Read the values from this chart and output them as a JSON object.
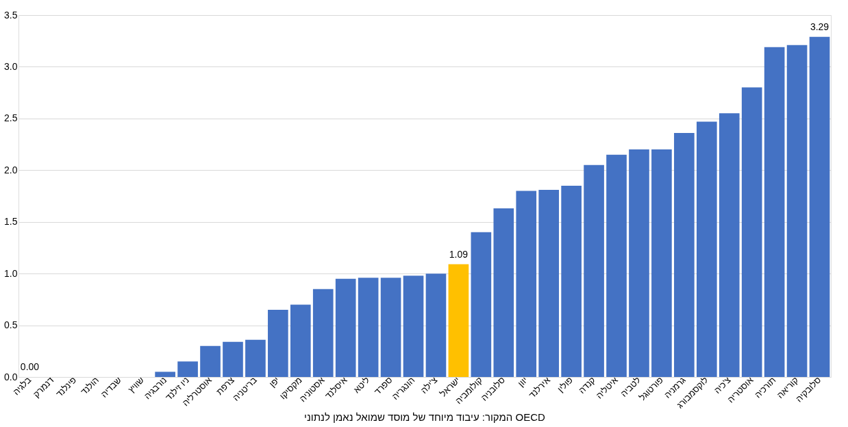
{
  "chart_data": {
    "type": "bar",
    "categories": [
      "בלגיה",
      "דנמרק",
      "פינלנד",
      "הולנד",
      "שבדיה",
      "שוויץ",
      "נורבגיה",
      "ניו זילנד",
      "אוסטרליה",
      "צרפת",
      "בריטניה",
      "יפן",
      "מקסיקו",
      "אסטוניה",
      "איסלנד",
      "ליטא",
      "ספרד",
      "הונגריה",
      "צ'ילה",
      "ישראל",
      "קולומביה",
      "סלובניה",
      "יוון",
      "אירלנד",
      "פולין",
      "קנדה",
      "איטליה",
      "לטביה",
      "פורטוגל",
      "גרמניה",
      "לוקסמבורג",
      "צ'כיה",
      "אוסטריה",
      "תורכיה",
      "קוריאה",
      "סלובקיה"
    ],
    "values": [
      0,
      0,
      0,
      0,
      0,
      0,
      0.05,
      0.15,
      0.3,
      0.34,
      0.36,
      0.65,
      0.7,
      0.85,
      0.95,
      0.96,
      0.96,
      0.98,
      1.0,
      1.09,
      1.4,
      1.63,
      1.8,
      1.81,
      1.85,
      2.05,
      2.15,
      2.2,
      2.2,
      2.36,
      2.47,
      2.55,
      2.8,
      3.19,
      3.21,
      3.29
    ],
    "colors": [
      "#4472c4",
      "#4472c4",
      "#4472c4",
      "#4472c4",
      "#4472c4",
      "#4472c4",
      "#4472c4",
      "#4472c4",
      "#4472c4",
      "#4472c4",
      "#4472c4",
      "#4472c4",
      "#4472c4",
      "#4472c4",
      "#4472c4",
      "#4472c4",
      "#4472c4",
      "#4472c4",
      "#4472c4",
      "#ffc000",
      "#4472c4",
      "#4472c4",
      "#4472c4",
      "#4472c4",
      "#4472c4",
      "#4472c4",
      "#4472c4",
      "#4472c4",
      "#4472c4",
      "#4472c4",
      "#4472c4",
      "#4472c4",
      "#4472c4",
      "#4472c4",
      "#4472c4",
      "#4472c4"
    ],
    "value_labels": [
      "0.00",
      null,
      null,
      null,
      null,
      null,
      null,
      null,
      null,
      null,
      null,
      null,
      null,
      null,
      null,
      null,
      null,
      null,
      null,
      "1.09",
      null,
      null,
      null,
      null,
      null,
      null,
      null,
      null,
      null,
      null,
      null,
      null,
      null,
      null,
      null,
      "3.29"
    ],
    "ylim": [
      0,
      3.5
    ],
    "yticks": [
      {
        "value": 0,
        "label": "0.0"
      },
      {
        "value": 0.5,
        "label": "0.5"
      },
      {
        "value": 1,
        "label": "1.0"
      },
      {
        "value": 1.5,
        "label": "1.5"
      },
      {
        "value": 2,
        "label": "2.0"
      },
      {
        "value": 2.5,
        "label": "2.5"
      },
      {
        "value": 3,
        "label": "3.0"
      },
      {
        "value": 3.5,
        "label": "3.5"
      }
    ],
    "grid": "y",
    "annotations": [
      "המקור: עיבוד מיוחד של מוסד שמואל נאמן לנתוני OECD"
    ]
  }
}
